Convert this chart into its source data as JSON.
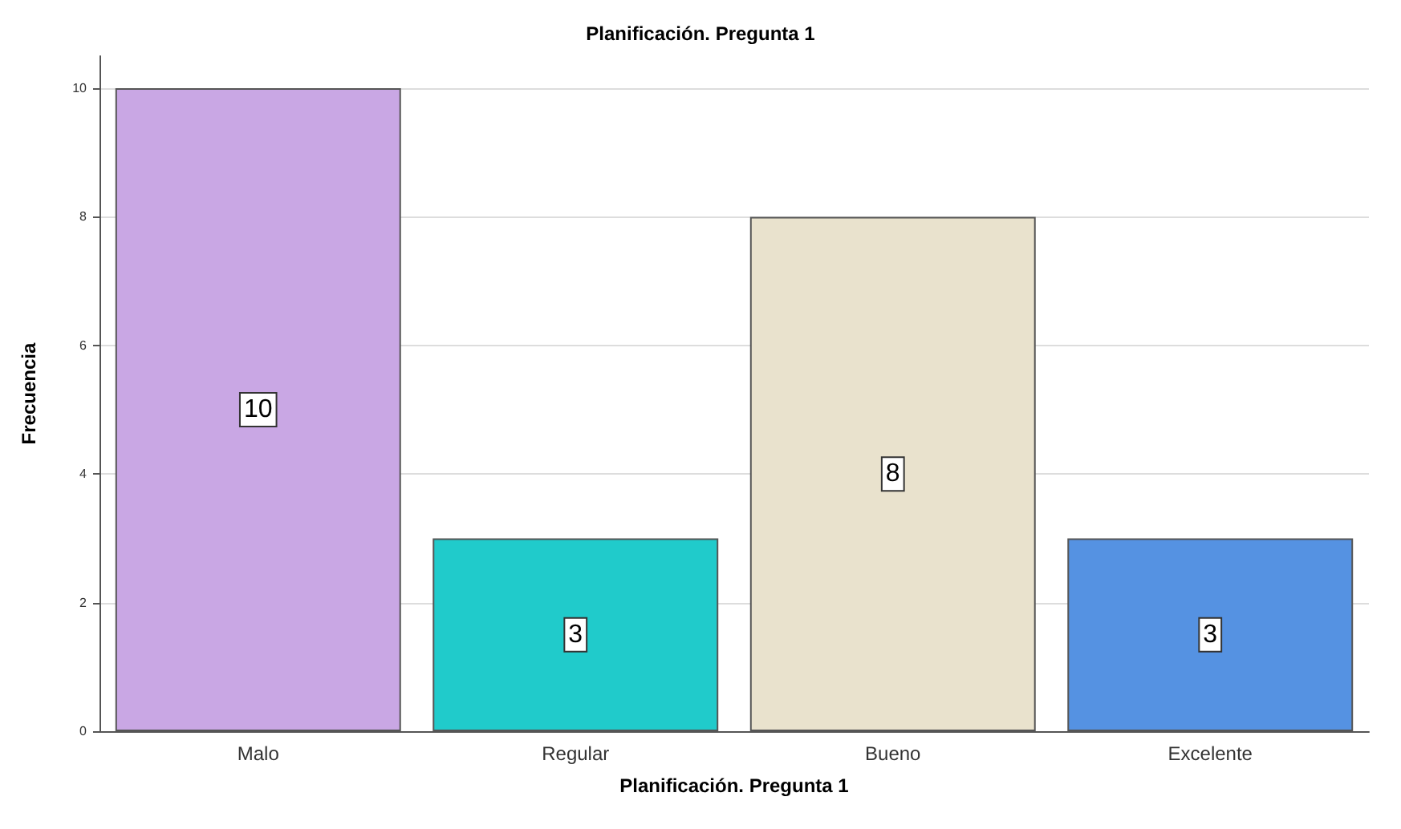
{
  "chart_data": {
    "type": "bar",
    "title": "Planificación. Pregunta 1",
    "xlabel": "Planificación. Pregunta 1",
    "ylabel": "Frecuencia",
    "categories": [
      "Malo",
      "Regular",
      "Bueno",
      "Excelente"
    ],
    "values": [
      10,
      3,
      8,
      3
    ],
    "colors": [
      "#c9a7e4",
      "#20cbcb",
      "#e9e2cd",
      "#5592e2"
    ],
    "ylim": [
      0,
      10.5
    ],
    "yticks": [
      0,
      2,
      4,
      6,
      8,
      10
    ],
    "grid": "y",
    "data_labels": true
  }
}
